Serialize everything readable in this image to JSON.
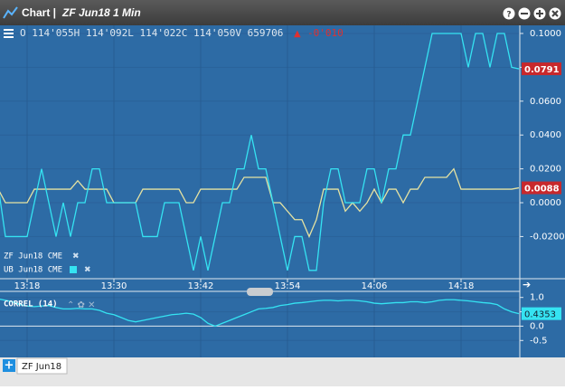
{
  "window": {
    "title": "Chart |",
    "subtitle": "ZF Jun18 1 Min"
  },
  "quote": {
    "ohlc": "O 114'055H 114'092L 114'022C 114'050V 659706",
    "change": "-0'010"
  },
  "tabs": [
    "ZF Jun18"
  ],
  "chart_data": [
    {
      "type": "line",
      "categories": [
        null,
        null,
        null,
        null,
        "13:18",
        null,
        null,
        null,
        null,
        null,
        null,
        null,
        null,
        null,
        null,
        null,
        "13:30",
        null,
        null,
        null,
        null,
        null,
        null,
        null,
        null,
        null,
        null,
        null,
        "13:42",
        null,
        null,
        null,
        null,
        null,
        null,
        null,
        null,
        null,
        null,
        null,
        "13:54",
        null,
        null,
        null,
        null,
        null,
        null,
        null,
        null,
        null,
        null,
        null,
        "14:06",
        null,
        null,
        null,
        null,
        null,
        null,
        null,
        null,
        null,
        null,
        null,
        "14:18",
        null,
        null,
        null,
        null,
        null,
        null,
        null,
        null
      ],
      "series": [
        {
          "name": "ZF Jun18 CME",
          "color": "#e6e3a2",
          "values": [
            0.008,
            0,
            0,
            0,
            0,
            0.008,
            0.008,
            0.008,
            0.008,
            0.008,
            0.008,
            0.013,
            0.008,
            0.008,
            0.008,
            0.008,
            0,
            0,
            0,
            0,
            0.008,
            0.008,
            0.008,
            0.008,
            0.008,
            0.008,
            0,
            0,
            0.008,
            0.008,
            0.008,
            0.008,
            0.008,
            0.008,
            0.015,
            0.015,
            0.015,
            0.015,
            0,
            0,
            -0.005,
            -0.01,
            -0.01,
            -0.02,
            -0.01,
            0.008,
            0.008,
            0.008,
            -0.005,
            0,
            -0.005,
            0,
            0.008,
            0,
            0.008,
            0.008,
            0,
            0.008,
            0.008,
            0.015,
            0.015,
            0.015,
            0.015,
            0.02,
            0.008,
            0.008,
            0.008,
            0.008,
            0.008,
            0.008,
            0.008,
            0.008,
            0.0088
          ]
        },
        {
          "name": "UB Jun18 CME",
          "color": "#35e3f2",
          "values": [
            0.01,
            -0.02,
            -0.02,
            -0.02,
            -0.02,
            0,
            0.02,
            0,
            -0.02,
            0,
            -0.02,
            0,
            0,
            0.02,
            0.02,
            0,
            0,
            0,
            0,
            0,
            -0.02,
            -0.02,
            -0.02,
            0,
            0,
            0,
            -0.02,
            -0.04,
            -0.02,
            -0.04,
            -0.02,
            0,
            0,
            0.02,
            0.02,
            0.04,
            0.02,
            0.02,
            0,
            -0.02,
            -0.04,
            -0.02,
            -0.02,
            -0.04,
            -0.04,
            0,
            0.02,
            0.02,
            0,
            0,
            0,
            0.02,
            0.02,
            0,
            0.02,
            0.02,
            0.04,
            0.04,
            0.06,
            0.08,
            0.1,
            0.1,
            0.1,
            0.1,
            0.1,
            0.08,
            0.1,
            0.1,
            0.08,
            0.1,
            0.1,
            0.08,
            0.0791
          ]
        }
      ],
      "ylim": [
        -0.0449,
        0.1048
      ],
      "yticks": [
        {
          "value": -0.02,
          "label": "-0.0200"
        },
        {
          "value": 0,
          "label": "0.0000"
        },
        {
          "value": 0.02,
          "label": "0.0200"
        },
        {
          "value": 0.04,
          "label": "0.0400"
        },
        {
          "value": 0.06,
          "label": "0.0600"
        },
        {
          "value": 0.08,
          "label": "0.0800"
        },
        {
          "value": 0.1,
          "label": "0.1000"
        }
      ],
      "grid": true
    },
    {
      "type": "line",
      "title": "CORREL (14)",
      "series": [
        {
          "name": "CORREL",
          "color": "#35e3f2",
          "values": [
            0.95,
            0.9,
            0.85,
            0.75,
            0.7,
            0.68,
            0.7,
            0.72,
            0.65,
            0.6,
            0.6,
            0.62,
            0.6,
            0.6,
            0.55,
            0.45,
            0.4,
            0.3,
            0.2,
            0.15,
            0.2,
            0.25,
            0.3,
            0.35,
            0.4,
            0.42,
            0.45,
            0.42,
            0.3,
            0.1,
            0,
            0.1,
            0.2,
            0.3,
            0.4,
            0.5,
            0.6,
            0.62,
            0.65,
            0.72,
            0.75,
            0.8,
            0.82,
            0.85,
            0.88,
            0.9,
            0.9,
            0.88,
            0.9,
            0.9,
            0.88,
            0.85,
            0.8,
            0.78,
            0.8,
            0.82,
            0.82,
            0.85,
            0.85,
            0.82,
            0.85,
            0.9,
            0.92,
            0.92,
            0.9,
            0.88,
            0.85,
            0.82,
            0.8,
            0.75,
            0.6,
            0.5,
            0.4353
          ]
        }
      ],
      "ylim": [
        -1.09,
        1.18
      ],
      "yticks": [
        {
          "value": -0.5,
          "label": "-0.5"
        },
        {
          "value": 0,
          "label": "0.0"
        },
        {
          "value": 0.5,
          "label": "0.5"
        },
        {
          "value": 1,
          "label": "1.0"
        }
      ],
      "grid": true
    }
  ]
}
